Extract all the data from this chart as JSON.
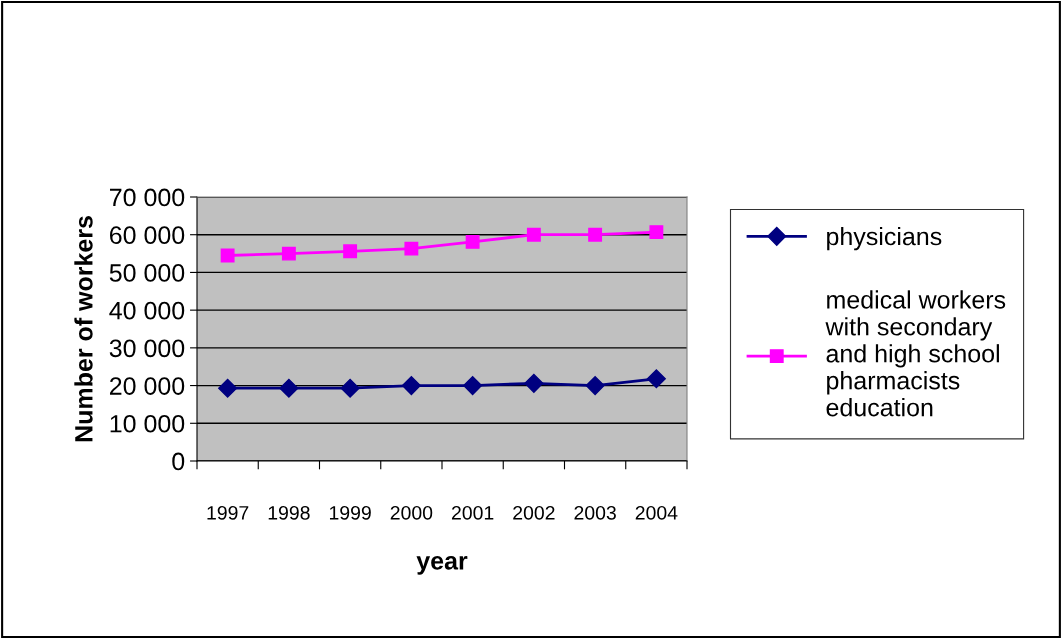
{
  "chart_data": {
    "type": "line",
    "xlabel": "year",
    "ylabel": "Number of workers",
    "categories": [
      "1997",
      "1998",
      "1999",
      "2000",
      "2001",
      "2002",
      "2003",
      "2004"
    ],
    "series": [
      {
        "name": "physicians",
        "color": "#000080",
        "marker": "diamond",
        "values": [
          19300,
          19300,
          19300,
          20000,
          20000,
          20600,
          20000,
          21800
        ]
      },
      {
        "name": "medical workers with secondary and high school pharmacists education",
        "color": "#ff00ff",
        "marker": "square",
        "values": [
          54500,
          55000,
          55600,
          56300,
          58100,
          60000,
          60000,
          60700
        ]
      }
    ],
    "ylim": [
      0,
      70000
    ],
    "yticks": [
      {
        "value": 0,
        "label": "0"
      },
      {
        "value": 10000,
        "label": "10 000"
      },
      {
        "value": 20000,
        "label": "20 000"
      },
      {
        "value": 30000,
        "label": "30 000"
      },
      {
        "value": 40000,
        "label": "40 000"
      },
      {
        "value": 50000,
        "label": "50 000"
      },
      {
        "value": 60000,
        "label": "60 000"
      },
      {
        "value": 70000,
        "label": "70 000"
      }
    ],
    "grid": "y",
    "legend": "right",
    "line_style": "solid"
  }
}
